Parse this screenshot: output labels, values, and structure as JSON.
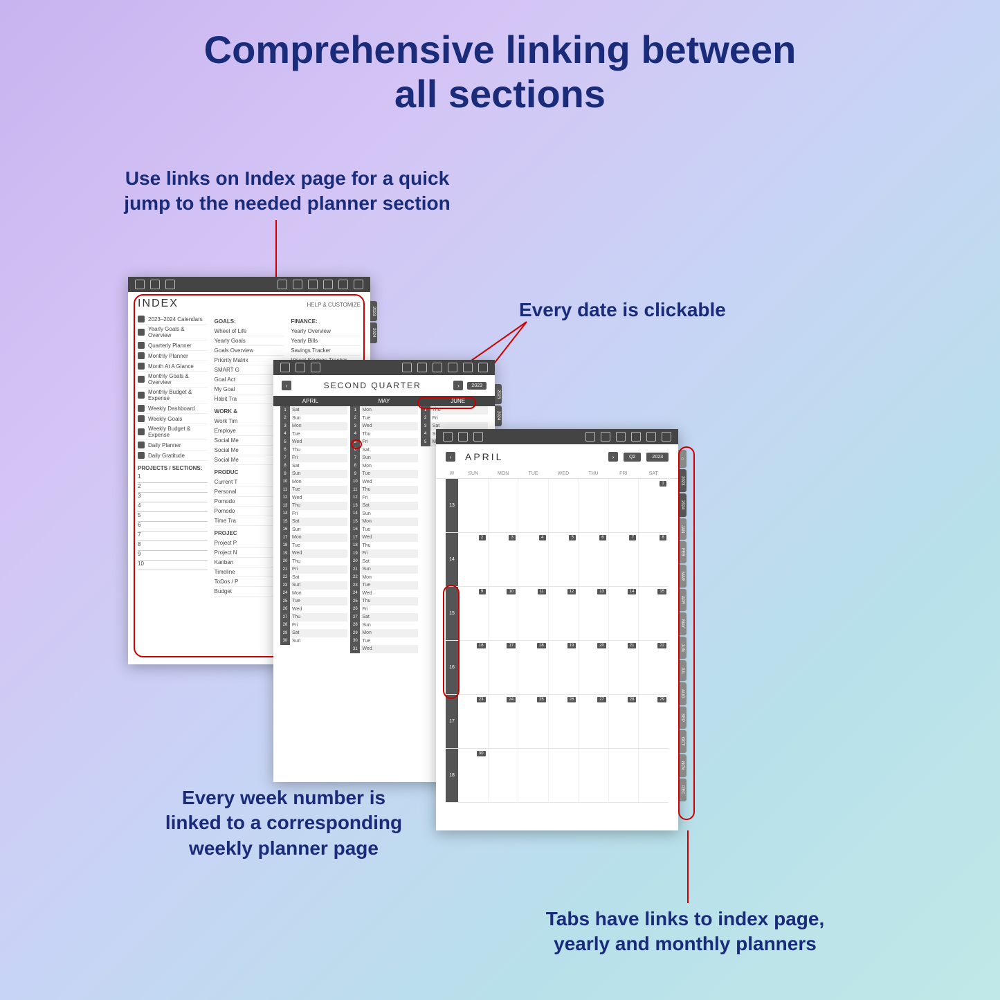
{
  "title_l1": "Comprehensive linking between",
  "title_l2": "all sections",
  "annotations": {
    "index_l1": "Use links on Index page for a quick",
    "index_l2": "jump to the needed planner section",
    "date": "Every date is clickable",
    "week_l1": "Every week number is",
    "week_l2": "linked to a corresponding",
    "week_l3": "weekly planner page",
    "tabs_l1": "Tabs have links to index page,",
    "tabs_l2": "yearly and monthly planners"
  },
  "index": {
    "title": "INDEX",
    "help": "HELP & CUSTOMIZE",
    "left_items": [
      "2023–2024 Calendars",
      "Yearly Goals & Overview",
      "Quarterly Planner",
      "Monthly Planner",
      "Month At A Glance",
      "Monthly Goals & Overview",
      "Monthly Budget & Expense",
      "Weekly Dashboard",
      "Weekly Goals",
      "Weekly Budget & Expense",
      "Daily Planner",
      "Daily Gratitude"
    ],
    "projects_h": "PROJECTS / SECTIONS:",
    "project_nums": [
      "1",
      "2",
      "3",
      "4",
      "5",
      "6",
      "7",
      "8",
      "9",
      "10"
    ],
    "mid_sections": [
      {
        "h": "GOALS:",
        "items": [
          "Wheel of Life",
          "Yearly Goals",
          "Goals Overview",
          "Priority Matrix",
          "SMART G",
          "Goal Act",
          "My Goal",
          "Habit Tra"
        ]
      },
      {
        "h": "WORK &",
        "items": [
          "Work Tim",
          "Employe",
          "Social Me",
          "Social Me",
          "Social Me"
        ]
      },
      {
        "h": "PRODUC",
        "items": [
          "Current T",
          "Personal",
          "Pomodo",
          "Pomodo",
          "Time Tra"
        ]
      },
      {
        "h": "PROJEC",
        "items": [
          "Project P",
          "Project N",
          "Kanban",
          "Timeline",
          "ToDos / P",
          "Budget"
        ]
      }
    ],
    "right_section": {
      "h": "FINANCE:",
      "items": [
        "Yearly Overview",
        "Yearly Bills",
        "Savings Tracker",
        "Visual Savings Tracker"
      ]
    },
    "tabs": [
      "2023",
      "2024"
    ]
  },
  "quarter": {
    "title": "SECOND QUARTER",
    "year": "2023",
    "months": [
      "APRIL",
      "MAY",
      "JUNE"
    ],
    "rows_apr": [
      [
        "1",
        "Sat"
      ],
      [
        "2",
        "Sun"
      ],
      [
        "3",
        "Mon"
      ],
      [
        "4",
        "Tue"
      ],
      [
        "5",
        "Wed"
      ],
      [
        "6",
        "Thu"
      ],
      [
        "7",
        "Fri"
      ],
      [
        "8",
        "Sat"
      ],
      [
        "9",
        "Sun"
      ],
      [
        "10",
        "Mon"
      ],
      [
        "11",
        "Tue"
      ],
      [
        "12",
        "Wed"
      ],
      [
        "13",
        "Thu"
      ],
      [
        "14",
        "Fri"
      ],
      [
        "15",
        "Sat"
      ],
      [
        "16",
        "Sun"
      ],
      [
        "17",
        "Mon"
      ],
      [
        "18",
        "Tue"
      ],
      [
        "19",
        "Wed"
      ],
      [
        "20",
        "Thu"
      ],
      [
        "21",
        "Fri"
      ],
      [
        "22",
        "Sat"
      ],
      [
        "23",
        "Sun"
      ],
      [
        "24",
        "Mon"
      ],
      [
        "25",
        "Tue"
      ],
      [
        "26",
        "Wed"
      ],
      [
        "27",
        "Thu"
      ],
      [
        "28",
        "Fri"
      ],
      [
        "29",
        "Sat"
      ],
      [
        "30",
        "Sun"
      ]
    ],
    "rows_may": [
      [
        "1",
        "Mon"
      ],
      [
        "2",
        "Tue"
      ],
      [
        "3",
        "Wed"
      ],
      [
        "4",
        "Thu"
      ],
      [
        "5",
        "Fri"
      ],
      [
        "6",
        "Sat"
      ],
      [
        "7",
        "Sun"
      ],
      [
        "8",
        "Mon"
      ],
      [
        "9",
        "Tue"
      ],
      [
        "10",
        "Wed"
      ],
      [
        "11",
        "Thu"
      ],
      [
        "12",
        "Fri"
      ],
      [
        "13",
        "Sat"
      ],
      [
        "14",
        "Sun"
      ],
      [
        "15",
        "Mon"
      ],
      [
        "16",
        "Tue"
      ],
      [
        "17",
        "Wed"
      ],
      [
        "18",
        "Thu"
      ],
      [
        "19",
        "Fri"
      ],
      [
        "20",
        "Sat"
      ],
      [
        "21",
        "Sun"
      ],
      [
        "22",
        "Mon"
      ],
      [
        "23",
        "Tue"
      ],
      [
        "24",
        "Wed"
      ],
      [
        "25",
        "Thu"
      ],
      [
        "26",
        "Fri"
      ],
      [
        "27",
        "Sat"
      ],
      [
        "28",
        "Sun"
      ],
      [
        "29",
        "Mon"
      ],
      [
        "30",
        "Tue"
      ],
      [
        "31",
        "Wed"
      ]
    ],
    "rows_jun": [
      [
        "1",
        "Thu"
      ],
      [
        "2",
        "Fri"
      ],
      [
        "3",
        "Sat"
      ],
      [
        "4",
        "Sun"
      ],
      [
        "5",
        "Mon"
      ]
    ],
    "tabs": [
      "2023",
      "2024"
    ]
  },
  "month": {
    "title": "APRIL",
    "q": "Q2",
    "year": "2023",
    "w_h": "W",
    "days": [
      "SUN",
      "MON",
      "TUE",
      "WED",
      "THU",
      "FRI",
      "SAT"
    ],
    "weeks": [
      {
        "n": "13",
        "d": [
          "",
          "",
          "",
          "",
          "",
          "",
          "1"
        ]
      },
      {
        "n": "14",
        "d": [
          "2",
          "3",
          "4",
          "5",
          "6",
          "7",
          "8"
        ]
      },
      {
        "n": "15",
        "d": [
          "9",
          "10",
          "11",
          "12",
          "13",
          "14",
          "15"
        ]
      },
      {
        "n": "16",
        "d": [
          "16",
          "17",
          "18",
          "19",
          "20",
          "21",
          "22"
        ]
      },
      {
        "n": "17",
        "d": [
          "23",
          "24",
          "25",
          "26",
          "27",
          "28",
          "29"
        ]
      },
      {
        "n": "18",
        "d": [
          "30",
          "",
          "",
          "",
          "",
          "",
          ""
        ]
      }
    ],
    "tabs": [
      "2023",
      "2024",
      "JAN",
      "FEB",
      "MAR",
      "APR",
      "MAY",
      "JUN",
      "JUL",
      "AUG",
      "SEP",
      "OCT",
      "NOV",
      "DEC"
    ]
  }
}
